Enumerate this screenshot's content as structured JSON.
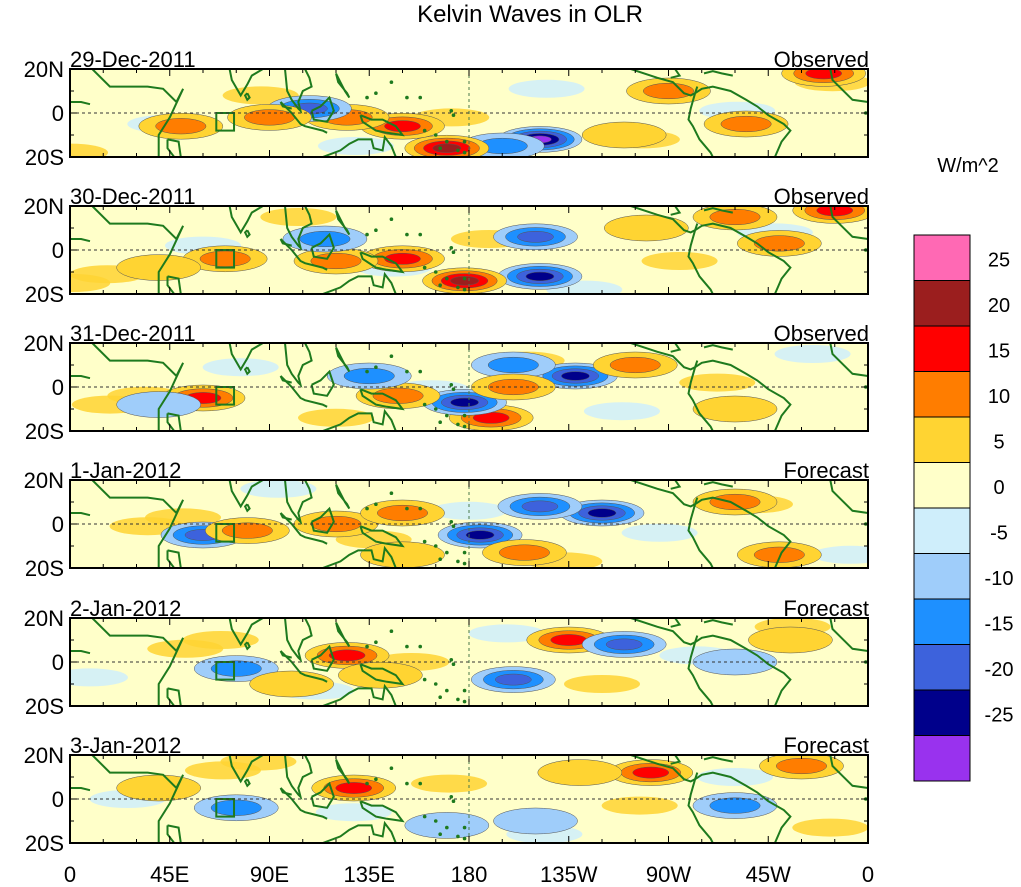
{
  "chart_data": {
    "type": "heatmap",
    "title": "Kelvin Waves in OLR",
    "xlabel": "",
    "ylabel": "",
    "unit_label": "W/m^2",
    "x_ticks": [
      "0",
      "45E",
      "90E",
      "135E",
      "180",
      "135W",
      "90W",
      "45W",
      "0"
    ],
    "x_range_deg": [
      0,
      360
    ],
    "y_ticks": [
      "20N",
      "0",
      "20S"
    ],
    "y_range_deg": [
      -20,
      20
    ],
    "colorbar": {
      "levels": [
        -25,
        -20,
        -15,
        -10,
        -5,
        0,
        5,
        10,
        15,
        20,
        25
      ],
      "tick_labels": [
        "25",
        "20",
        "15",
        "10",
        "5",
        "0",
        "-5",
        "-10",
        "-15",
        "-20",
        "-25"
      ],
      "colors": [
        "#9932ee",
        "#00008b",
        "#3d62dc",
        "#1e90ff",
        "#9fcdfa",
        "#cfeefb",
        "#ffffc9",
        "#ffd432",
        "#ff7d00",
        "#ff0000",
        "#9b1e1e",
        "#ff69b4"
      ]
    },
    "panels": [
      {
        "date": "29-Dec-2011",
        "kind": "Observed",
        "features": [
          {
            "lon": 212,
            "lat": -12,
            "value": -27
          },
          {
            "lon": 195,
            "lat": -15,
            "value": -13
          },
          {
            "lon": 170,
            "lat": -16,
            "value": 22
          },
          {
            "lon": 150,
            "lat": -6,
            "value": 16
          },
          {
            "lon": 125,
            "lat": -2,
            "value": 12
          },
          {
            "lon": 108,
            "lat": 2,
            "value": -18
          },
          {
            "lon": 90,
            "lat": -2,
            "value": 13
          },
          {
            "lon": 50,
            "lat": -6,
            "value": 13
          },
          {
            "lon": 270,
            "lat": 10,
            "value": 14
          },
          {
            "lon": 340,
            "lat": 18,
            "value": 17
          },
          {
            "lon": 250,
            "lat": -10,
            "value": 8
          },
          {
            "lon": 305,
            "lat": -5,
            "value": 12
          }
        ]
      },
      {
        "date": "30-Dec-2011",
        "kind": "Observed",
        "features": [
          {
            "lon": 212,
            "lat": -12,
            "value": -22
          },
          {
            "lon": 210,
            "lat": 6,
            "value": -15
          },
          {
            "lon": 178,
            "lat": -14,
            "value": 21
          },
          {
            "lon": 150,
            "lat": -4,
            "value": 16
          },
          {
            "lon": 120,
            "lat": -5,
            "value": 12
          },
          {
            "lon": 115,
            "lat": 5,
            "value": -12
          },
          {
            "lon": 70,
            "lat": -4,
            "value": 12
          },
          {
            "lon": 40,
            "lat": -8,
            "value": 8
          },
          {
            "lon": 300,
            "lat": 15,
            "value": 10
          },
          {
            "lon": 345,
            "lat": 18,
            "value": 17
          },
          {
            "lon": 320,
            "lat": 3,
            "value": 10
          },
          {
            "lon": 260,
            "lat": 10,
            "value": 8
          }
        ]
      },
      {
        "date": "31-Dec-2011",
        "kind": "Observed",
        "features": [
          {
            "lon": 228,
            "lat": 5,
            "value": -22
          },
          {
            "lon": 200,
            "lat": 10,
            "value": -12
          },
          {
            "lon": 190,
            "lat": -14,
            "value": 16
          },
          {
            "lon": 178,
            "lat": -7,
            "value": -20
          },
          {
            "lon": 148,
            "lat": -4,
            "value": 14
          },
          {
            "lon": 135,
            "lat": 5,
            "value": -12
          },
          {
            "lon": 60,
            "lat": -5,
            "value": 15
          },
          {
            "lon": 40,
            "lat": -8,
            "value": -8
          },
          {
            "lon": 255,
            "lat": 10,
            "value": 12
          },
          {
            "lon": 200,
            "lat": 0,
            "value": 12
          },
          {
            "lon": 300,
            "lat": -10,
            "value": 8
          }
        ]
      },
      {
        "date": "1-Jan-2012",
        "kind": "Forecast",
        "features": [
          {
            "lon": 240,
            "lat": 5,
            "value": -22
          },
          {
            "lon": 212,
            "lat": 8,
            "value": -17
          },
          {
            "lon": 185,
            "lat": -5,
            "value": -22
          },
          {
            "lon": 205,
            "lat": -13,
            "value": 14
          },
          {
            "lon": 120,
            "lat": 0,
            "value": 13
          },
          {
            "lon": 60,
            "lat": -5,
            "value": -18
          },
          {
            "lon": 80,
            "lat": -3,
            "value": 12
          },
          {
            "lon": 150,
            "lat": 5,
            "value": 10
          },
          {
            "lon": 320,
            "lat": -14,
            "value": 12
          },
          {
            "lon": 300,
            "lat": 10,
            "value": 10
          },
          {
            "lon": 150,
            "lat": -14,
            "value": 8
          }
        ]
      },
      {
        "date": "2-Jan-2012",
        "kind": "Forecast",
        "features": [
          {
            "lon": 225,
            "lat": 10,
            "value": 18
          },
          {
            "lon": 250,
            "lat": 8,
            "value": -15
          },
          {
            "lon": 200,
            "lat": -8,
            "value": -16
          },
          {
            "lon": 125,
            "lat": 3,
            "value": 16
          },
          {
            "lon": 75,
            "lat": -3,
            "value": -12
          },
          {
            "lon": 140,
            "lat": -6,
            "value": 8
          },
          {
            "lon": 300,
            "lat": 0,
            "value": -8
          },
          {
            "lon": 325,
            "lat": 10,
            "value": 8
          },
          {
            "lon": 100,
            "lat": -10,
            "value": 8
          }
        ]
      },
      {
        "date": "3-Jan-2012",
        "kind": "Forecast",
        "features": [
          {
            "lon": 262,
            "lat": 12,
            "value": 17
          },
          {
            "lon": 230,
            "lat": 12,
            "value": 8
          },
          {
            "lon": 128,
            "lat": 5,
            "value": 16
          },
          {
            "lon": 75,
            "lat": -4,
            "value": -12
          },
          {
            "lon": 170,
            "lat": -12,
            "value": -8
          },
          {
            "lon": 300,
            "lat": -3,
            "value": -10
          },
          {
            "lon": 330,
            "lat": 15,
            "value": 10
          },
          {
            "lon": 210,
            "lat": -10,
            "value": -8
          },
          {
            "lon": 40,
            "lat": 5,
            "value": 8
          }
        ]
      }
    ]
  }
}
